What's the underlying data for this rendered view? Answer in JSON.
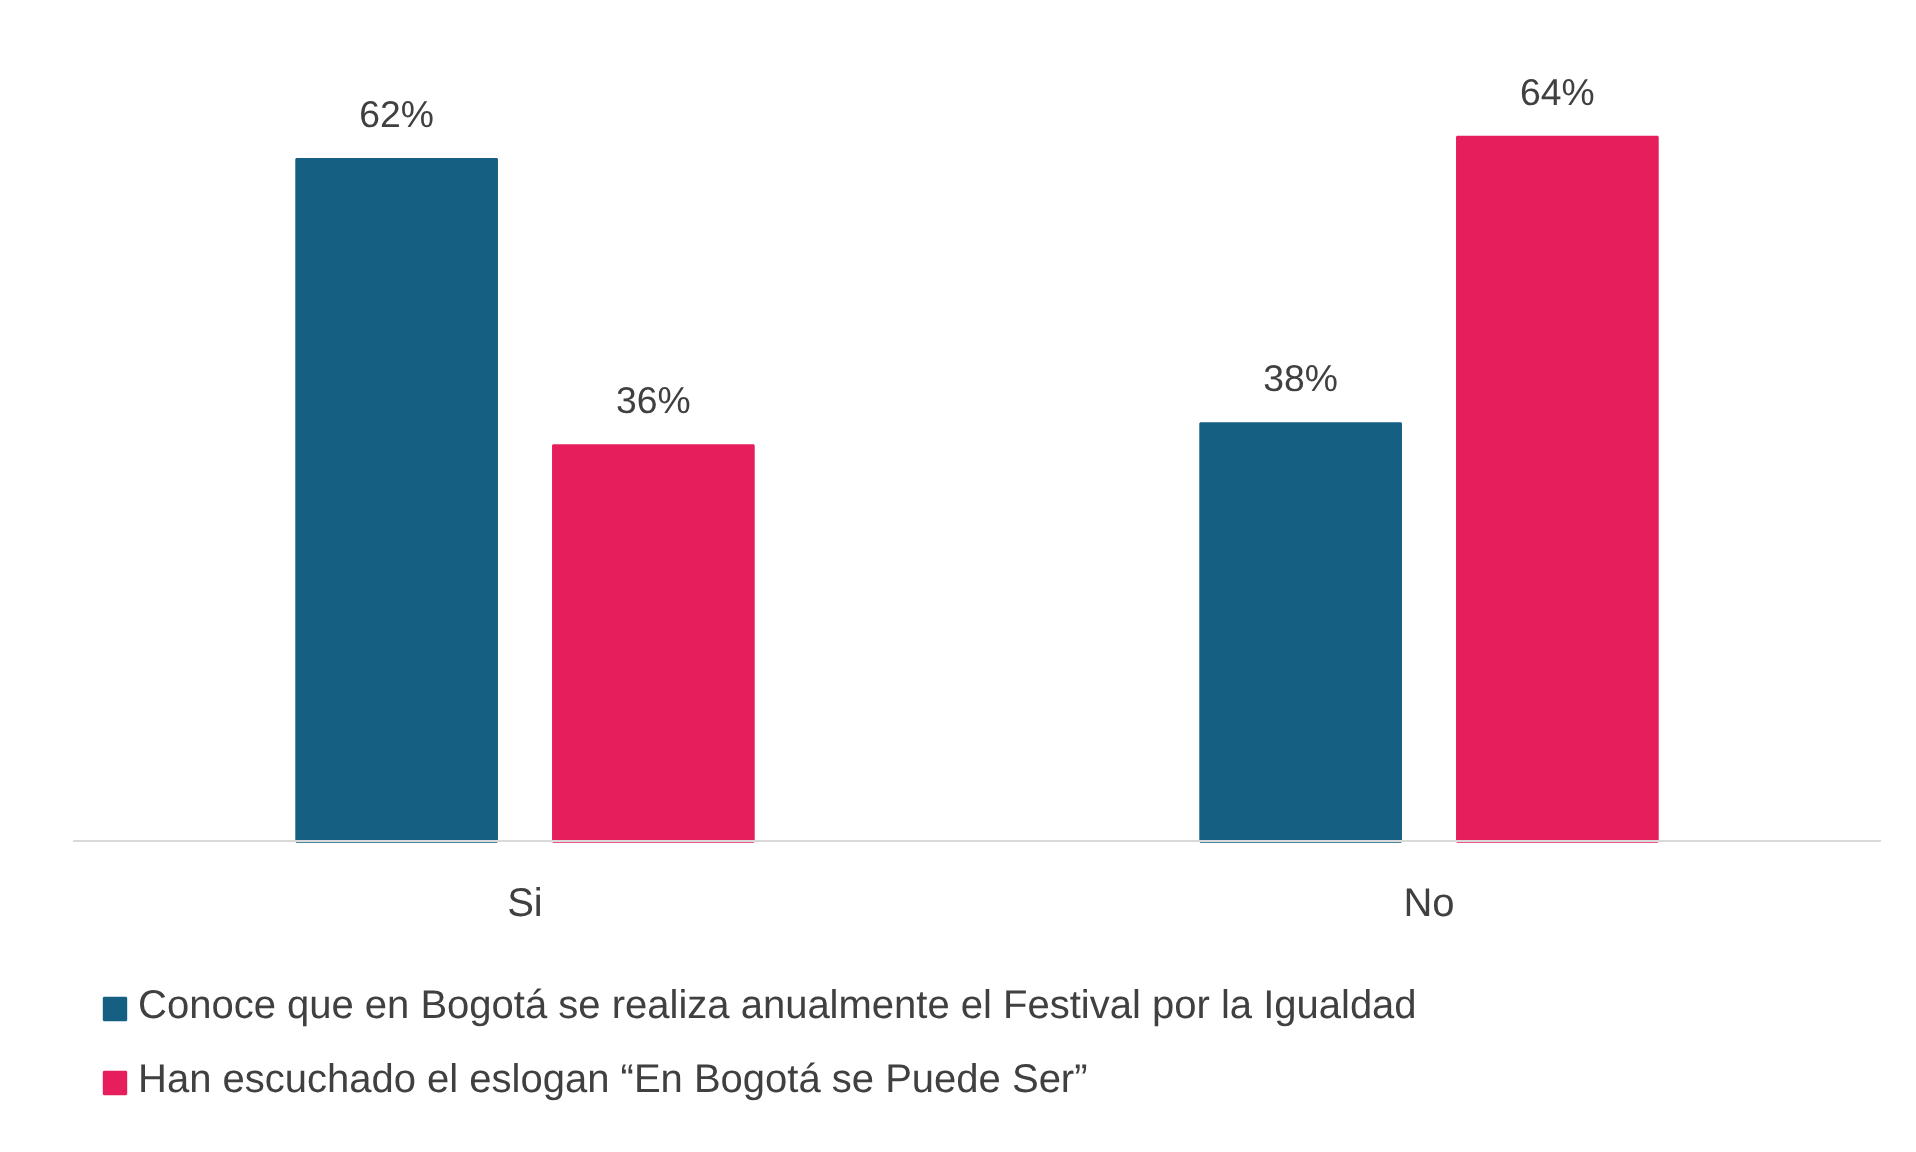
{
  "chart_data": {
    "type": "bar",
    "categories": [
      "Si",
      "No"
    ],
    "series": [
      {
        "name": "Conoce que en Bogotá se realiza anualmente el Festival por la Igualdad",
        "color": "#156082",
        "values": [
          62,
          38
        ],
        "value_labels": [
          "62%",
          "38%"
        ]
      },
      {
        "name": "Han escuchado el eslogan “En Bogotá se Puede Ser”",
        "color": "#e61e5c",
        "values": [
          36,
          64
        ],
        "value_labels": [
          "36%",
          "64%"
        ]
      }
    ],
    "legend": "bottom"
  }
}
